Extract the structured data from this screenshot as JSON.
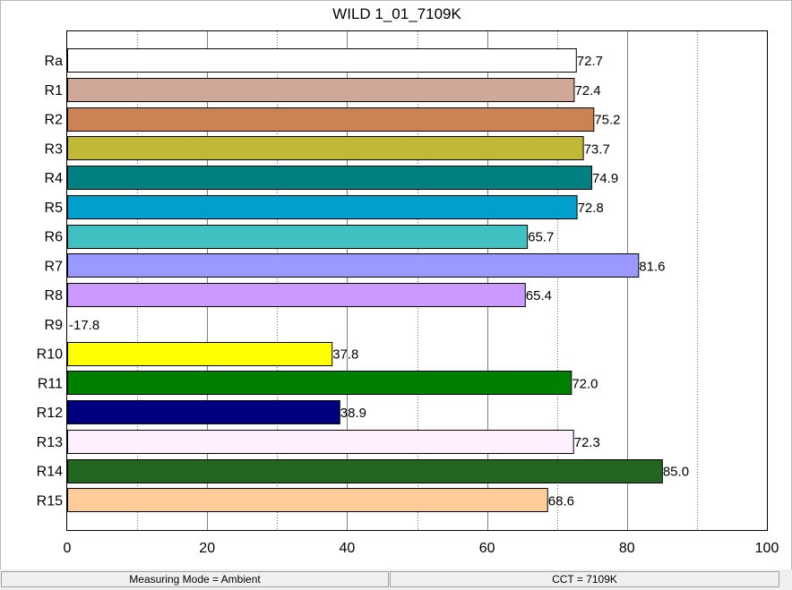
{
  "chart_data": {
    "type": "bar",
    "orientation": "horizontal",
    "title": "WILD 1_01_7109K",
    "xlabel": "",
    "ylabel": "",
    "xlim": [
      0,
      100
    ],
    "x_ticks": [
      0,
      20,
      40,
      60,
      80,
      100
    ],
    "grid": "vertical",
    "categories": [
      "Ra",
      "R1",
      "R2",
      "R3",
      "R4",
      "R5",
      "R6",
      "R7",
      "R8",
      "R9",
      "R10",
      "R11",
      "R12",
      "R13",
      "R14",
      "R15"
    ],
    "values": [
      72.7,
      72.4,
      75.2,
      73.7,
      74.9,
      72.8,
      65.7,
      81.6,
      65.4,
      -17.8,
      37.8,
      72.0,
      38.9,
      72.3,
      85.0,
      68.6
    ],
    "value_labels": [
      "72.7",
      "72.4",
      "75.2",
      "73.7",
      "74.9",
      "72.8",
      "65.7",
      "81.6",
      "65.4",
      "-17.8",
      "37.8",
      "72.0",
      "38.9",
      "72.3",
      "85.0",
      "68.6"
    ],
    "colors": [
      "#ffffff",
      "#cfa899",
      "#cd8254",
      "#c0b836",
      "#008080",
      "#009fcc",
      "#40c0c0",
      "#9999ff",
      "#cc99ff",
      "#ffffff",
      "#ffff00",
      "#008000",
      "#000080",
      "#fff0ff",
      "#226622",
      "#ffcc99"
    ]
  },
  "statusbar": {
    "mode": "Measuring Mode = Ambient",
    "cct": "CCT = 7109K"
  }
}
